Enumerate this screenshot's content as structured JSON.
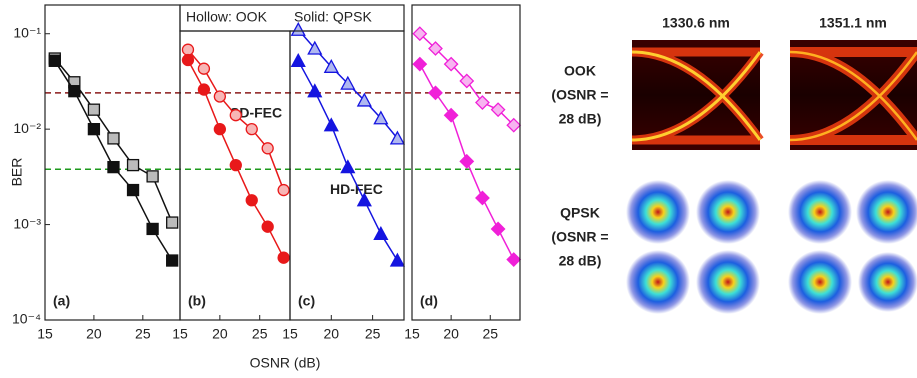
{
  "figure": {
    "y_label": "BER",
    "x_label": "OSNR (dB)",
    "legend_hollow": "Hollow: OOK",
    "legend_solid": "Solid: QPSK",
    "thresholds": [
      {
        "label": "SD-FEC",
        "value": 0.024,
        "color": "#8b1a1a"
      },
      {
        "label": "HD-FEC",
        "value": 0.0038,
        "color": "#1e9a1e"
      }
    ]
  },
  "chart_data": [
    {
      "type": "line",
      "panel_label": "(a)",
      "log_y": true,
      "marker": "square",
      "xlim": [
        15,
        28.8
      ],
      "xticks": [
        15,
        20,
        25
      ],
      "ylim": [
        0.0001,
        0.2
      ],
      "yticks": [
        {
          "value": 0.1,
          "label": "10⁻¹"
        },
        {
          "value": 0.01,
          "label": "10⁻²"
        },
        {
          "value": 0.001,
          "label": "10⁻³"
        },
        {
          "value": 0.0001,
          "label": "10⁻⁴"
        }
      ],
      "x": [
        16,
        18,
        20,
        22,
        24,
        26,
        28
      ],
      "series": [
        {
          "name": "OOK",
          "color": "#111111",
          "fill": "#bbbbbb",
          "values": [
            0.055,
            0.031,
            0.016,
            0.008,
            0.0042,
            0.0032,
            0.00105
          ]
        },
        {
          "name": "QPSK",
          "color": "#111111",
          "fill": "#111111",
          "values": [
            0.052,
            0.025,
            0.01,
            0.004,
            0.0023,
            0.0009,
            0.00042
          ]
        }
      ]
    },
    {
      "type": "line",
      "panel_label": "(b)",
      "log_y": true,
      "marker": "circle",
      "xlim": [
        15,
        28.8
      ],
      "xticks": [
        15,
        20,
        25
      ],
      "ylim": [
        0.0001,
        0.2
      ],
      "x": [
        16,
        18,
        20,
        22,
        24,
        26,
        28
      ],
      "series": [
        {
          "name": "OOK",
          "color": "#e8191a",
          "fill": "#f7b6b6",
          "values": [
            0.068,
            0.043,
            0.022,
            0.014,
            0.01,
            0.0063,
            0.0023
          ]
        },
        {
          "name": "QPSK",
          "color": "#e8191a",
          "fill": "#e8191a",
          "values": [
            0.053,
            0.026,
            0.01,
            0.0042,
            0.0018,
            0.00095,
            0.00045
          ]
        }
      ]
    },
    {
      "type": "line",
      "panel_label": "(c)",
      "log_y": true,
      "marker": "triangle",
      "xlim": [
        15,
        28.8
      ],
      "xticks": [
        15,
        20,
        25
      ],
      "ylim": [
        0.0001,
        0.2
      ],
      "x": [
        16,
        18,
        20,
        22,
        24,
        26,
        28
      ],
      "series": [
        {
          "name": "OOK",
          "color": "#1515e0",
          "fill": "#b0b8f0",
          "values": [
            0.11,
            0.07,
            0.045,
            0.03,
            0.02,
            0.013,
            0.008
          ]
        },
        {
          "name": "QPSK",
          "color": "#1515e0",
          "fill": "#1515e0",
          "values": [
            0.052,
            0.025,
            0.011,
            0.004,
            0.0018,
            0.0008,
            0.00042
          ]
        }
      ]
    },
    {
      "type": "line",
      "panel_label": "(d)",
      "log_y": true,
      "marker": "diamond",
      "xlim": [
        15,
        28.8
      ],
      "xticks": [
        15,
        20,
        25
      ],
      "ylim": [
        0.0001,
        0.2
      ],
      "x": [
        16,
        18,
        20,
        22,
        24,
        26,
        28
      ],
      "series": [
        {
          "name": "OOK",
          "color": "#f020d8",
          "fill": "#f7b4f0",
          "values": [
            0.1,
            0.07,
            0.048,
            0.032,
            0.019,
            0.016,
            0.011
          ]
        },
        {
          "name": "QPSK",
          "color": "#f020d8",
          "fill": "#f020d8",
          "values": [
            0.048,
            0.024,
            0.014,
            0.0046,
            0.0019,
            0.0009,
            0.00043
          ]
        }
      ]
    }
  ],
  "images": {
    "columns": [
      "1330.6 nm",
      "1351.1 nm"
    ],
    "rows": [
      [
        "OOK",
        "(OSNR =",
        "28 dB)"
      ],
      [
        "QPSK",
        "(OSNR =",
        "28 dB)"
      ]
    ]
  }
}
